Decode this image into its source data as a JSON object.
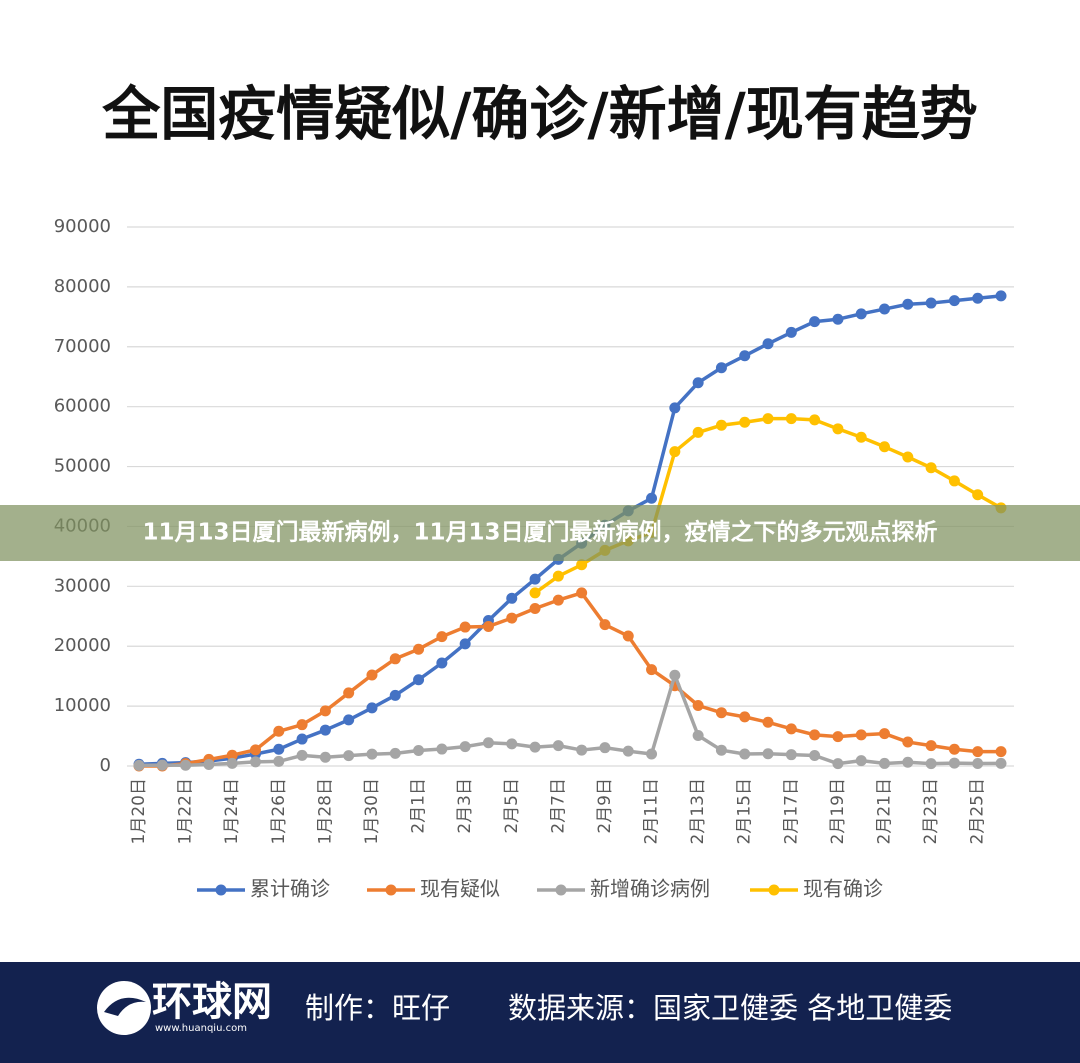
{
  "chart_data": {
    "type": "line",
    "title": "全国疫情疑似/确诊/新增/现有趋势",
    "categories": [
      "1月20日",
      null,
      "1月22日",
      null,
      "1月24日",
      null,
      "1月26日",
      null,
      "1月28日",
      null,
      "1月30日",
      null,
      "2月1日",
      null,
      "2月3日",
      null,
      "2月5日",
      null,
      "2月7日",
      null,
      "2月9日",
      null,
      "2月11日",
      null,
      "2月13日",
      null,
      "2月15日",
      null,
      "2月17日",
      null,
      "2月19日",
      null,
      "2月21日",
      null,
      "2月23日",
      null,
      "2月25日",
      null
    ],
    "series": [
      {
        "name": "累计确诊",
        "color": "#4472c4",
        "values": [
          300,
          440,
          570,
          830,
          1300,
          2000,
          2800,
          4500,
          6000,
          7700,
          9700,
          11800,
          14400,
          17200,
          20400,
          24300,
          28000,
          31200,
          34500,
          37200,
          40200,
          42600,
          44700,
          59800,
          64000,
          66500,
          68500,
          70500,
          72400,
          74200,
          74600,
          75500,
          76300,
          77100,
          77300,
          77700,
          78100,
          78500
        ]
      },
      {
        "name": "现有疑似",
        "color": "#ed7d31",
        "values": [
          0,
          0,
          400,
          1100,
          1800,
          2700,
          5800,
          6900,
          9200,
          12200,
          15200,
          17900,
          19500,
          21600,
          23200,
          23300,
          24700,
          26300,
          27700,
          28900,
          23600,
          21700,
          16100,
          13400,
          10100,
          8900,
          8200,
          7300,
          6200,
          5200,
          4900,
          5200,
          5400,
          4000,
          3400,
          2800,
          2400,
          2400
        ]
      },
      {
        "name": "新增确诊病例",
        "color": "#a5a5a5",
        "values": [
          100,
          150,
          130,
          260,
          440,
          690,
          770,
          1770,
          1460,
          1740,
          1980,
          2100,
          2590,
          2830,
          3240,
          3890,
          3700,
          3150,
          3400,
          2660,
          3060,
          2480,
          2010,
          15150,
          5090,
          2640,
          2010,
          2050,
          1890,
          1750,
          390,
          890,
          430,
          630,
          400,
          490,
          410,
          440
        ]
      },
      {
        "name": "现有确诊",
        "color": "#ffc000",
        "values": [
          null,
          null,
          null,
          null,
          null,
          null,
          null,
          null,
          null,
          null,
          null,
          null,
          null,
          null,
          null,
          null,
          null,
          28900,
          31700,
          33600,
          36000,
          37600,
          39000,
          52500,
          55700,
          56900,
          57400,
          58000,
          58000,
          57800,
          56300,
          54900,
          53300,
          51600,
          49800,
          47600,
          45300,
          43100
        ]
      }
    ],
    "ylim": [
      0,
      90000
    ],
    "yticks": [
      0,
      10000,
      20000,
      30000,
      40000,
      50000,
      60000,
      70000,
      80000,
      90000
    ],
    "grid": true,
    "legend": "bottom"
  },
  "banner": "11月13日厦门最新病例，11月13日厦门最新病例，疫情之下的多元观点探析",
  "footer": {
    "logo": "环球网",
    "url": "www.huanqiu.com",
    "credit": "制作：旺仔",
    "source": "数据来源：国家卫健委 各地卫健委"
  }
}
